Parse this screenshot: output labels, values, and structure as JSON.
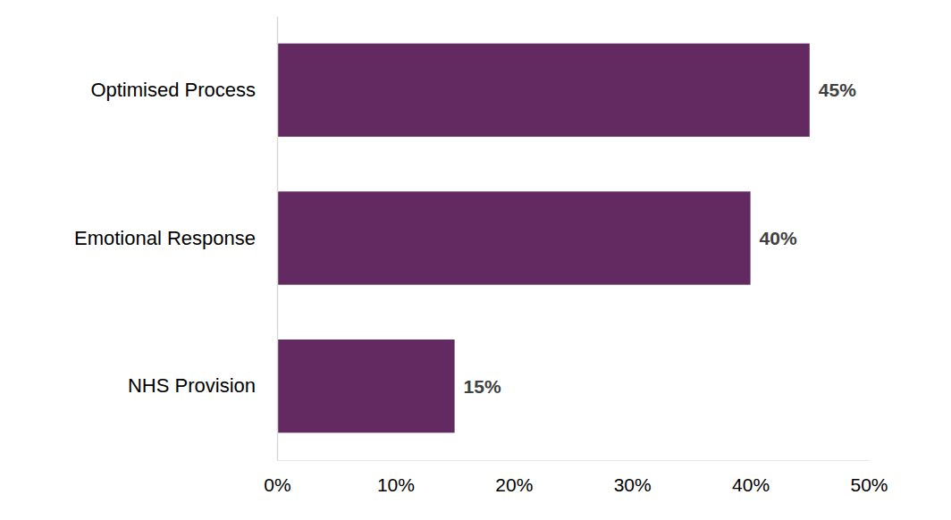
{
  "chart_data": {
    "type": "bar",
    "orientation": "horizontal",
    "categories": [
      "Optimised Process",
      "Emotional Response",
      "NHS Provision"
    ],
    "values": [
      45,
      40,
      15
    ],
    "value_labels": [
      "45%",
      "40%",
      "15%"
    ],
    "data_labels": true,
    "color": "#622a61",
    "xlim": [
      0,
      50
    ],
    "xticks": [
      {
        "value": 0,
        "label": "0%"
      },
      {
        "value": 10,
        "label": "10%"
      },
      {
        "value": 20,
        "label": "20%"
      },
      {
        "value": 30,
        "label": "30%"
      },
      {
        "value": 40,
        "label": "40%"
      },
      {
        "value": 50,
        "label": "50%"
      }
    ],
    "grid": false
  }
}
